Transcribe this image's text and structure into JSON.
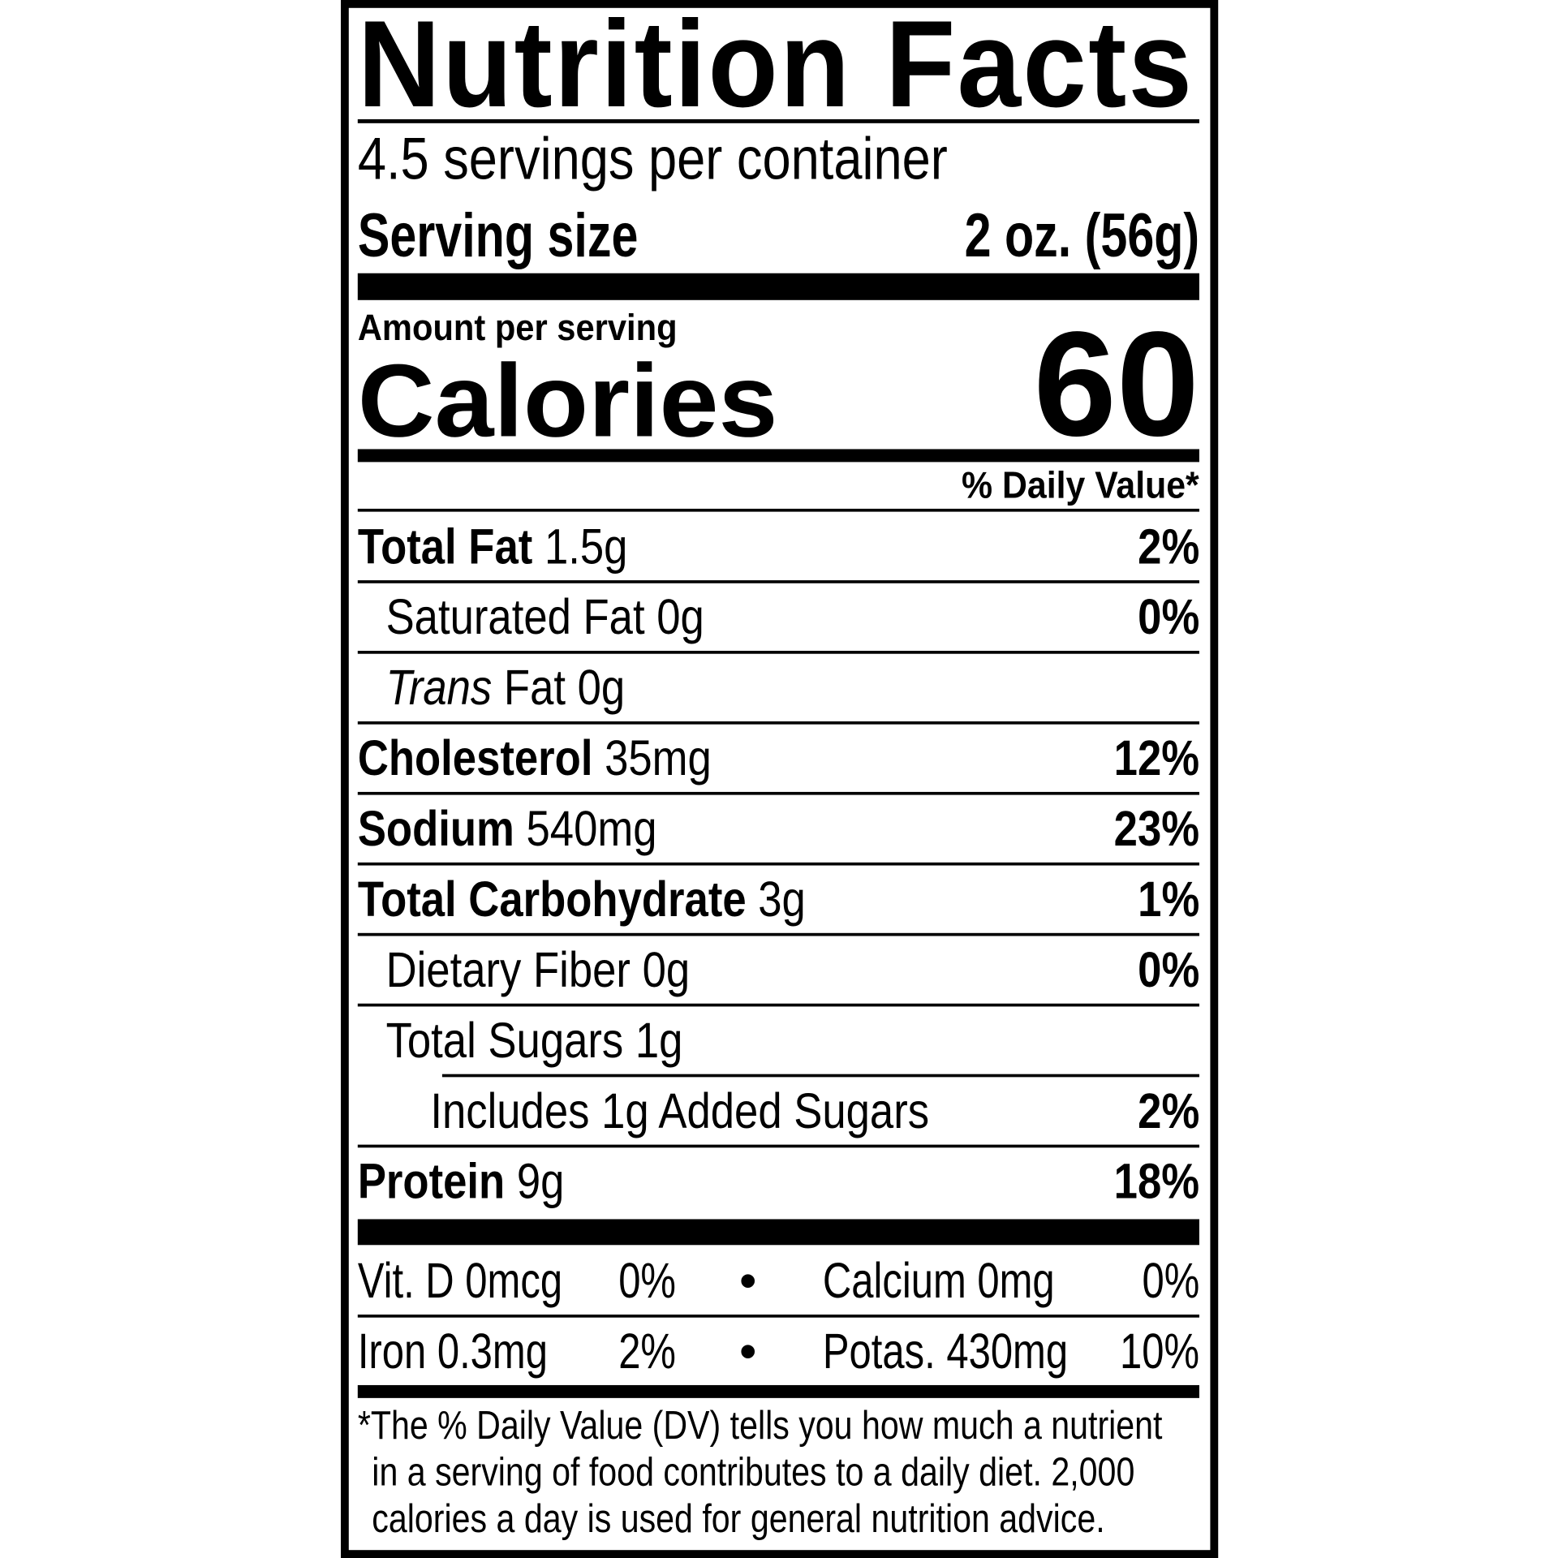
{
  "title": "Nutrition Facts",
  "servings_per_container": "4.5 servings per container",
  "serving_size": {
    "label": "Serving size",
    "value": "2 oz. (56g)"
  },
  "amount_per_serving": "Amount per serving",
  "calories": {
    "label": "Calories",
    "value": "60"
  },
  "daily_value_header": "% Daily Value*",
  "nutrients": [
    {
      "name": "Total Fat",
      "amount": "1.5g",
      "dv": "2%"
    },
    {
      "name": "Saturated Fat",
      "amount": "0g",
      "dv": "0%"
    },
    {
      "name": "Trans",
      "name_rest": "Fat",
      "amount": "0g",
      "dv": ""
    },
    {
      "name": "Cholesterol",
      "amount": "35mg",
      "dv": "12%"
    },
    {
      "name": "Sodium",
      "amount": "540mg",
      "dv": "23%"
    },
    {
      "name": "Total Carbohydrate",
      "amount": "3g",
      "dv": "1%"
    },
    {
      "name": "Dietary Fiber",
      "amount": "0g",
      "dv": "0%"
    },
    {
      "name": "Total Sugars",
      "amount": "1g",
      "dv": ""
    },
    {
      "name": "Includes 1g Added Sugars",
      "amount": "",
      "dv": "2%"
    },
    {
      "name": "Protein",
      "amount": "9g",
      "dv": "18%"
    }
  ],
  "micronutrients": [
    {
      "left": {
        "name": "Vit. D 0mcg",
        "dv": "0%"
      },
      "bullet": "•",
      "right": {
        "name": "Calcium 0mg",
        "dv": "0%"
      }
    },
    {
      "left": {
        "name": "Iron 0.3mg",
        "dv": "2%"
      },
      "bullet": "•",
      "right": {
        "name": "Potas. 430mg",
        "dv": "10%"
      }
    }
  ],
  "footnote": [
    "*The % Daily Value (DV) tells you how much a nutrient",
    "in a serving of food contributes to a daily diet. 2,000",
    "calories a day is used for general nutrition advice."
  ]
}
